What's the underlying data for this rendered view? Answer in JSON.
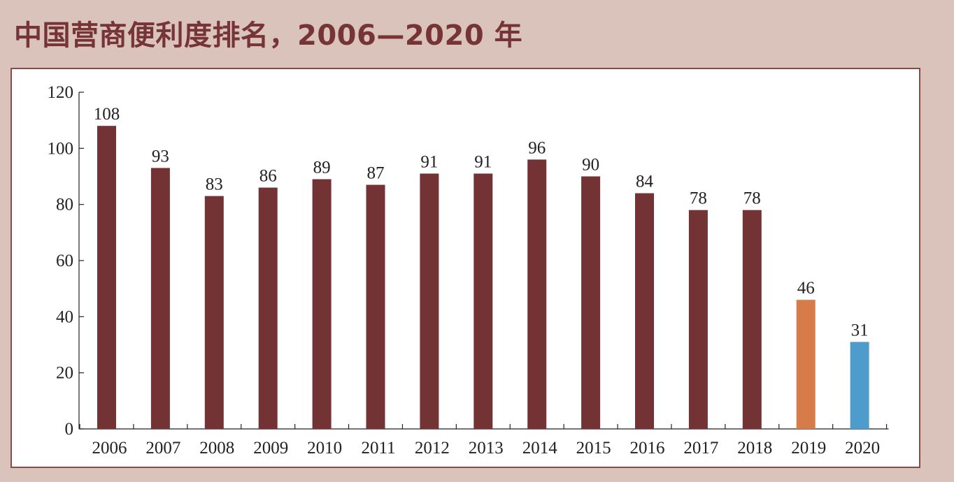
{
  "title": "中国营商便利度排名，2006—2020 年",
  "chart_data": {
    "type": "bar",
    "title": "中国营商便利度排名，2006—2020 年",
    "xlabel": "",
    "ylabel": "",
    "ylim": [
      0,
      120
    ],
    "yticks": [
      0,
      20,
      40,
      60,
      80,
      100,
      120
    ],
    "categories": [
      "2006",
      "2007",
      "2008",
      "2009",
      "2010",
      "2011",
      "2012",
      "2013",
      "2014",
      "2015",
      "2016",
      "2017",
      "2018",
      "2019",
      "2020"
    ],
    "values": [
      108,
      93,
      83,
      86,
      89,
      87,
      91,
      91,
      96,
      90,
      84,
      78,
      78,
      46,
      31
    ],
    "bar_colors": [
      "#733335",
      "#733335",
      "#733335",
      "#733335",
      "#733335",
      "#733335",
      "#733335",
      "#733335",
      "#733335",
      "#733335",
      "#733335",
      "#733335",
      "#733335",
      "#d57c4a",
      "#4d9ccb"
    ],
    "grid": false,
    "legend": "none"
  }
}
